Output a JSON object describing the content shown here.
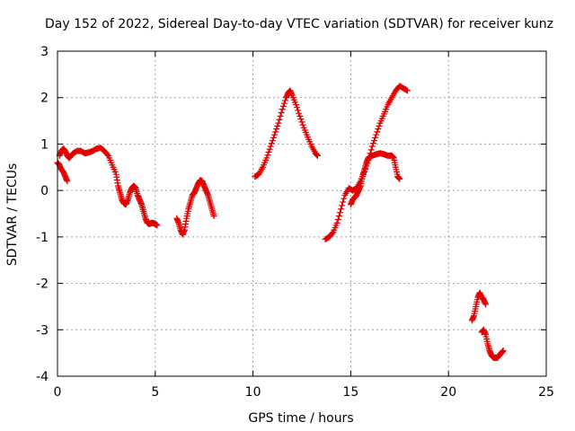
{
  "chart_data": {
    "type": "scatter",
    "title": "Day 152 of 2022, Sidereal Day-to-day VTEC variation (SDTVAR) for receiver kunz",
    "xlabel": "GPS time / hours",
    "ylabel": "SDTVAR / TECUs",
    "xlim": [
      0,
      25
    ],
    "ylim": [
      -4,
      3
    ],
    "x_ticks": [
      "0",
      "5",
      "10",
      "15",
      "20",
      "25"
    ],
    "y_ticks": [
      "-4",
      "-3",
      "-2",
      "-1",
      "0",
      "1",
      "2",
      "3"
    ],
    "grid": true,
    "marker": "plus",
    "color": "#e00000",
    "segments": [
      [
        [
          0.0,
          0.6
        ],
        [
          0.1,
          0.55
        ],
        [
          0.2,
          0.45
        ],
        [
          0.3,
          0.4
        ],
        [
          0.4,
          0.3
        ],
        [
          0.5,
          0.2
        ]
      ],
      [
        [
          0.1,
          0.75
        ],
        [
          0.2,
          0.85
        ],
        [
          0.3,
          0.9
        ],
        [
          0.4,
          0.85
        ],
        [
          0.5,
          0.75
        ],
        [
          0.6,
          0.7
        ],
        [
          0.7,
          0.75
        ],
        [
          0.8,
          0.8
        ],
        [
          1.0,
          0.85
        ],
        [
          1.2,
          0.85
        ],
        [
          1.4,
          0.8
        ],
        [
          1.6,
          0.82
        ],
        [
          1.8,
          0.85
        ],
        [
          2.0,
          0.9
        ],
        [
          2.2,
          0.92
        ],
        [
          2.4,
          0.85
        ],
        [
          2.6,
          0.75
        ],
        [
          2.8,
          0.55
        ],
        [
          3.0,
          0.35
        ],
        [
          3.1,
          0.1
        ],
        [
          3.2,
          -0.05
        ],
        [
          3.3,
          -0.2
        ],
        [
          3.4,
          -0.28
        ],
        [
          3.5,
          -0.3
        ],
        [
          3.6,
          -0.2
        ],
        [
          3.7,
          -0.05
        ],
        [
          3.8,
          0.05
        ],
        [
          3.9,
          0.1
        ],
        [
          4.0,
          0.05
        ],
        [
          4.1,
          -0.1
        ],
        [
          4.2,
          -0.2
        ],
        [
          4.3,
          -0.3
        ],
        [
          4.4,
          -0.45
        ],
        [
          4.5,
          -0.6
        ],
        [
          4.6,
          -0.7
        ],
        [
          4.7,
          -0.72
        ],
        [
          4.8,
          -0.7
        ],
        [
          4.9,
          -0.7
        ],
        [
          5.0,
          -0.72
        ],
        [
          5.1,
          -0.75
        ]
      ],
      [
        [
          6.1,
          -0.6
        ],
        [
          6.2,
          -0.7
        ],
        [
          6.3,
          -0.85
        ],
        [
          6.4,
          -0.95
        ],
        [
          6.5,
          -0.85
        ],
        [
          6.6,
          -0.6
        ],
        [
          6.7,
          -0.4
        ],
        [
          6.8,
          -0.25
        ],
        [
          6.9,
          -0.1
        ],
        [
          7.0,
          -0.05
        ],
        [
          7.1,
          0.05
        ],
        [
          7.2,
          0.15
        ],
        [
          7.3,
          0.22
        ],
        [
          7.4,
          0.2
        ],
        [
          7.5,
          0.1
        ],
        [
          7.6,
          0.0
        ],
        [
          7.7,
          -0.1
        ],
        [
          7.8,
          -0.25
        ],
        [
          7.9,
          -0.4
        ],
        [
          8.0,
          -0.55
        ]
      ],
      [
        [
          10.1,
          0.3
        ],
        [
          10.3,
          0.35
        ],
        [
          10.5,
          0.5
        ],
        [
          10.7,
          0.7
        ],
        [
          10.9,
          0.95
        ],
        [
          11.1,
          1.2
        ],
        [
          11.3,
          1.45
        ],
        [
          11.5,
          1.75
        ],
        [
          11.7,
          2.0
        ],
        [
          11.8,
          2.1
        ],
        [
          11.9,
          2.15
        ],
        [
          12.0,
          2.05
        ],
        [
          12.2,
          1.85
        ],
        [
          12.4,
          1.6
        ],
        [
          12.6,
          1.35
        ],
        [
          12.8,
          1.15
        ],
        [
          13.0,
          0.95
        ],
        [
          13.2,
          0.8
        ],
        [
          13.3,
          0.75
        ]
      ],
      [
        [
          13.7,
          -1.05
        ],
        [
          13.9,
          -1.0
        ],
        [
          14.1,
          -0.9
        ],
        [
          14.3,
          -0.7
        ],
        [
          14.5,
          -0.4
        ],
        [
          14.7,
          -0.1
        ],
        [
          14.9,
          0.05
        ],
        [
          15.1,
          0.0
        ],
        [
          15.3,
          0.05
        ],
        [
          15.5,
          0.2
        ],
        [
          15.7,
          0.4
        ],
        [
          15.9,
          0.65
        ],
        [
          16.1,
          0.95
        ],
        [
          16.3,
          1.2
        ],
        [
          16.5,
          1.45
        ],
        [
          16.7,
          1.65
        ],
        [
          16.9,
          1.85
        ],
        [
          17.1,
          2.0
        ],
        [
          17.3,
          2.15
        ],
        [
          17.5,
          2.25
        ],
        [
          17.7,
          2.2
        ],
        [
          17.9,
          2.15
        ]
      ],
      [
        [
          15.0,
          -0.3
        ],
        [
          15.1,
          -0.2
        ],
        [
          15.2,
          -0.15
        ],
        [
          15.3,
          -0.1
        ],
        [
          15.4,
          0.0
        ],
        [
          15.5,
          0.1
        ],
        [
          15.6,
          0.3
        ],
        [
          15.7,
          0.45
        ],
        [
          15.8,
          0.6
        ],
        [
          15.9,
          0.7
        ],
        [
          16.1,
          0.75
        ],
        [
          16.3,
          0.78
        ],
        [
          16.5,
          0.8
        ],
        [
          16.7,
          0.78
        ],
        [
          16.9,
          0.75
        ],
        [
          17.1,
          0.75
        ],
        [
          17.2,
          0.7
        ],
        [
          17.3,
          0.5
        ],
        [
          17.4,
          0.3
        ],
        [
          17.5,
          0.25
        ]
      ],
      [
        [
          21.2,
          -2.8
        ],
        [
          21.3,
          -2.7
        ],
        [
          21.4,
          -2.5
        ],
        [
          21.5,
          -2.3
        ],
        [
          21.6,
          -2.2
        ],
        [
          21.7,
          -2.3
        ],
        [
          21.8,
          -2.35
        ],
        [
          21.9,
          -2.45
        ]
      ],
      [
        [
          21.7,
          -3.05
        ],
        [
          21.8,
          -3.0
        ],
        [
          21.9,
          -3.1
        ],
        [
          22.0,
          -3.3
        ],
        [
          22.1,
          -3.45
        ],
        [
          22.2,
          -3.55
        ],
        [
          22.3,
          -3.6
        ],
        [
          22.4,
          -3.6
        ],
        [
          22.5,
          -3.6
        ],
        [
          22.6,
          -3.55
        ],
        [
          22.7,
          -3.5
        ],
        [
          22.8,
          -3.45
        ]
      ]
    ]
  }
}
